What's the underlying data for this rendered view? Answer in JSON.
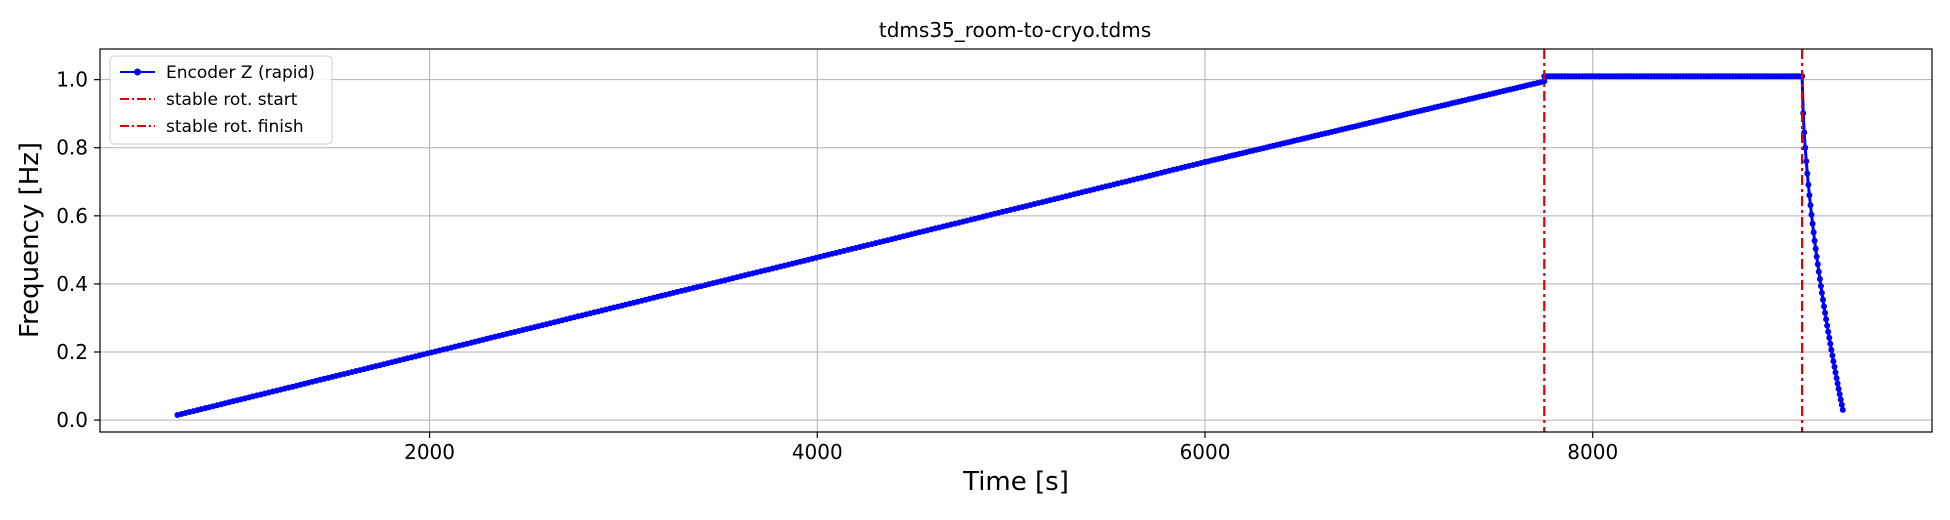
{
  "chart_data": {
    "type": "line",
    "title": "tdms35_room-to-cryo.tdms",
    "xlabel": "Time [s]",
    "ylabel": "Frequency [Hz]",
    "xlim": [
      300,
      9750
    ],
    "ylim": [
      -0.035,
      1.09
    ],
    "xticks": [
      2000,
      4000,
      6000,
      8000
    ],
    "yticks": [
      0.0,
      0.2,
      0.4,
      0.6,
      0.8,
      1.0
    ],
    "grid": true,
    "legend_position": "top-left",
    "series": [
      {
        "name": "Encoder Z (rapid)",
        "color": "#0000ff",
        "style": "line-with-dot-markers",
        "segments": [
          {
            "kind": "linear",
            "x_start": 700,
            "x_end": 6000,
            "y_start": 0.015,
            "y_end": 0.758,
            "count": 260
          },
          {
            "kind": "linear",
            "x_start": 6000,
            "x_end": 7750,
            "y_start": 0.758,
            "y_end": 0.995,
            "count": 100
          },
          {
            "kind": "plateau",
            "x_start": 7750,
            "x_end": 9080,
            "y": 1.01,
            "count": 90
          },
          {
            "kind": "decay",
            "x_start": 9080,
            "x_end": 9290,
            "y_start": 1.01,
            "y_end": 0.03,
            "count": 40
          }
        ]
      }
    ],
    "vlines": [
      {
        "name": "stable rot. start",
        "x": 7750,
        "color": "#e00000",
        "style": "dash-dot"
      },
      {
        "name": "stable rot. finish",
        "x": 9080,
        "color": "#e00000",
        "style": "dash-dot"
      }
    ]
  }
}
